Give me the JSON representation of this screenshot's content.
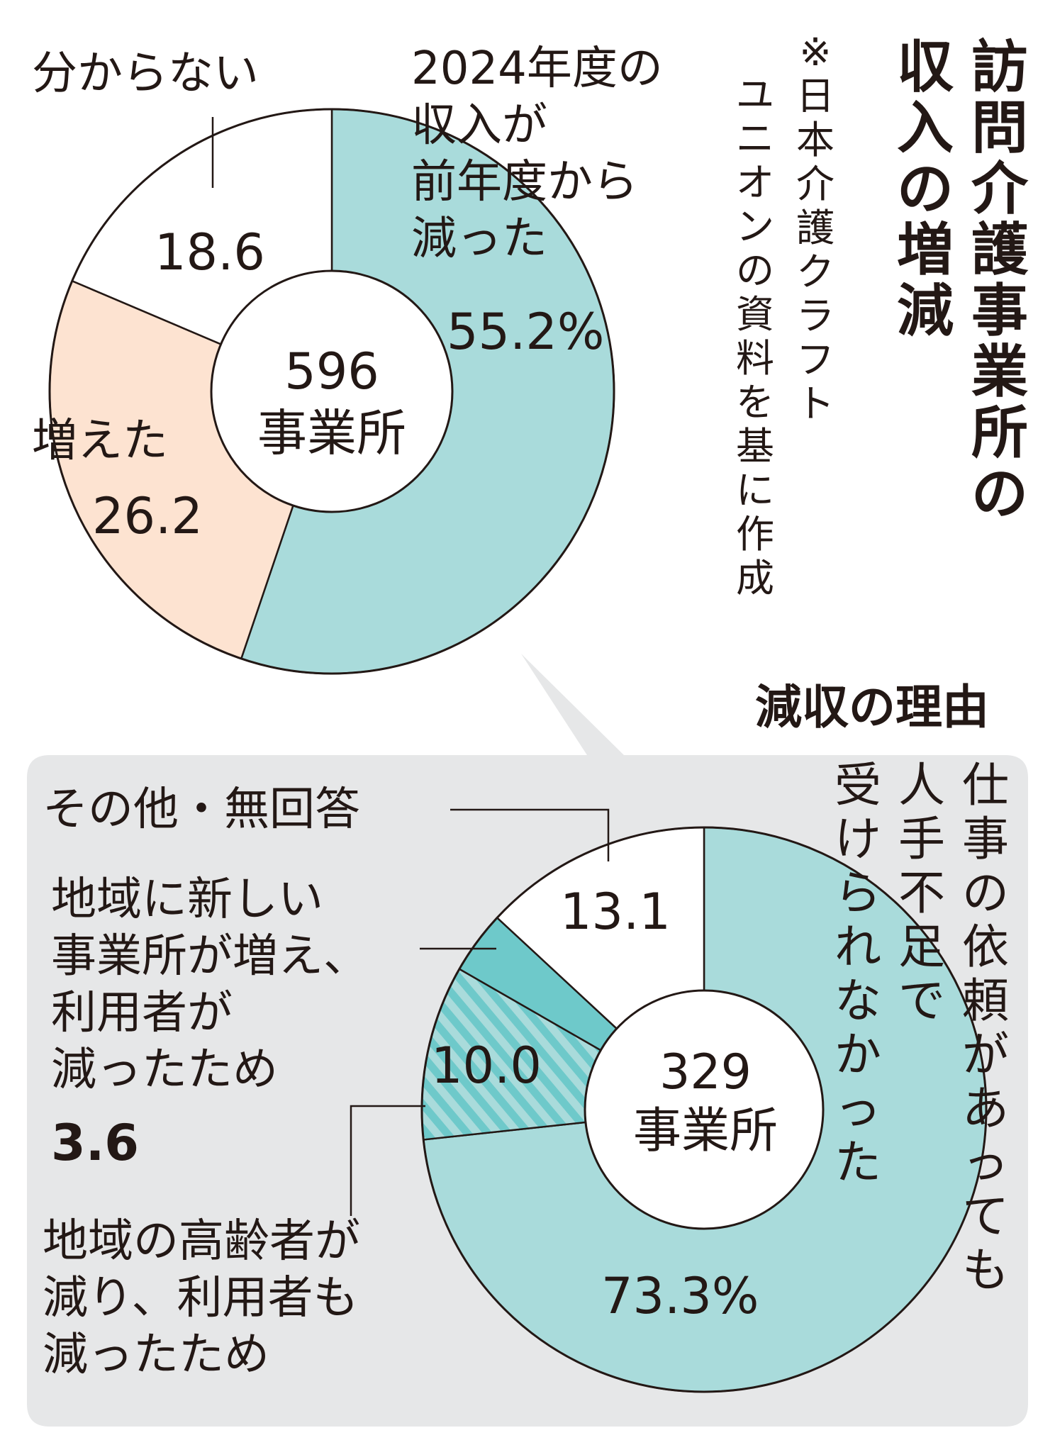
{
  "title": "訪問介護事業所の収入の増減",
  "source_note": "※日本介護クラフトユニオンの資料を基に作成",
  "colors": {
    "teal": "#a9dbdb",
    "teal_dark": "#6ec9ca",
    "peach": "#fde3d1",
    "white": "#ffffff",
    "panel": "#e6e7e8",
    "ink": "#231815"
  },
  "chart_data": [
    {
      "type": "pie",
      "center_label": [
        "596",
        "事業所"
      ],
      "slices": [
        {
          "label": [
            "2024年度の",
            "収入が",
            "前年度から",
            "減った"
          ],
          "value": 55.2,
          "value_text": "55.2%",
          "color": "#a9dbdb"
        },
        {
          "label": [
            "増えた"
          ],
          "value": 26.2,
          "value_text": "26.2",
          "color": "#fde3d1"
        },
        {
          "label": [
            "分からない"
          ],
          "value": 18.6,
          "value_text": "18.6",
          "color": "#ffffff"
        }
      ]
    },
    {
      "type": "pie",
      "title": "減収の理由",
      "center_label": [
        "329",
        "事業所"
      ],
      "slices": [
        {
          "label": [
            "仕事の依頼があっても",
            "人手不足で",
            "受けられなかった"
          ],
          "value": 73.3,
          "value_text": "73.3%",
          "color": "#a9dbdb"
        },
        {
          "label": [
            "地域の高齢者が",
            "減り、利用者も",
            "減ったため"
          ],
          "value": 10.0,
          "value_text": "10.0",
          "color": "hatched"
        },
        {
          "label": [
            "地域に新しい",
            "事業所が増え、",
            "利用者が",
            "減ったため"
          ],
          "value": 3.6,
          "value_text": "3.6",
          "color": "#6ec9ca"
        },
        {
          "label": [
            "その他・無回答"
          ],
          "value": 13.1,
          "value_text": "13.1",
          "color": "#ffffff"
        }
      ]
    }
  ]
}
